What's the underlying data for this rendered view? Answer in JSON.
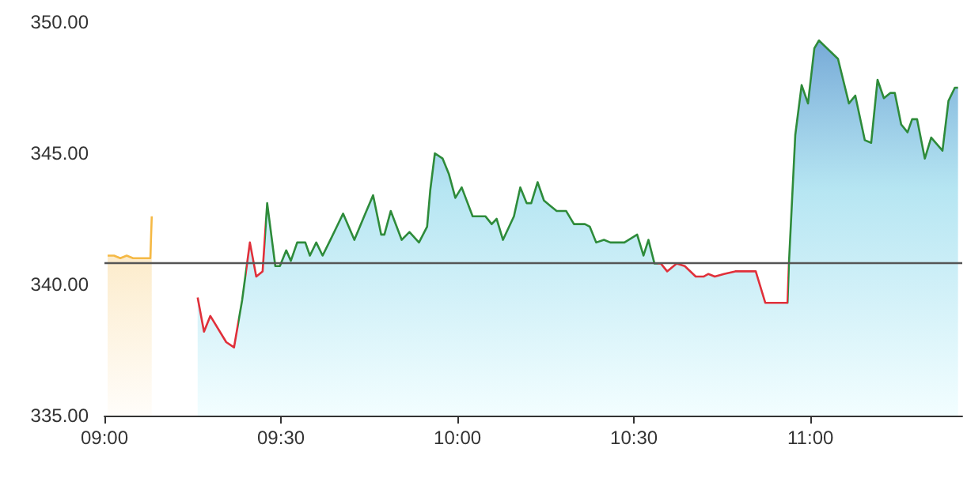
{
  "chart_data": {
    "type": "area",
    "xlim": [
      9,
      11.43
    ],
    "ylim": [
      335,
      350
    ],
    "xticks": [
      {
        "value": 9,
        "label": "09:00"
      },
      {
        "value": 9.5,
        "label": "09:30"
      },
      {
        "value": 10,
        "label": "10:00"
      },
      {
        "value": 10.5,
        "label": "10:30"
      },
      {
        "value": 11,
        "label": "11:00"
      }
    ],
    "yticks": [
      {
        "value": 335,
        "label": "335.00"
      },
      {
        "value": 340,
        "label": "340.00"
      },
      {
        "value": 345,
        "label": "345.00"
      },
      {
        "value": 350,
        "label": "350.00"
      }
    ],
    "grid": false,
    "marker": "none",
    "ref_lines": [
      {
        "axis": "y",
        "value": 340.8,
        "color": "#555555"
      }
    ],
    "series": [
      {
        "color": "#f5b945",
        "x": [
          9.009,
          9.027,
          9.045,
          9.063,
          9.081,
          9.099,
          9.116,
          9.13,
          9.134
        ],
        "values": [
          341.1,
          341.1,
          341.0,
          341.1,
          341.0,
          341.0,
          341.0,
          341.0,
          342.6
        ]
      },
      {
        "color": "#3d86c6",
        "x": [
          9.264,
          9.282,
          9.3,
          9.345,
          9.367,
          9.39,
          9.412,
          9.43,
          9.448,
          9.461,
          9.484,
          9.497,
          9.515,
          9.528,
          9.546,
          9.569,
          9.582,
          9.6,
          9.618,
          9.64,
          9.658,
          9.676,
          9.708,
          9.739,
          9.761,
          9.784,
          9.793,
          9.811,
          9.842,
          9.864,
          9.891,
          9.914,
          9.923,
          9.936,
          9.958,
          9.976,
          9.994,
          10.012,
          10.043,
          10.079,
          10.097,
          10.111,
          10.129,
          10.16,
          10.178,
          10.196,
          10.209,
          10.227,
          10.245,
          10.263,
          10.281,
          10.308,
          10.33,
          10.361,
          10.375,
          10.393,
          10.415,
          10.433,
          10.473,
          10.509,
          10.527,
          10.541,
          10.558,
          10.576,
          10.594,
          10.621,
          10.644,
          10.675,
          10.697,
          10.711,
          10.729,
          10.755,
          10.787,
          10.845,
          10.872,
          10.935,
          10.939,
          10.957,
          10.975,
          10.993,
          11.011,
          11.024,
          11.078,
          11.109,
          11.127,
          11.154,
          11.172,
          11.19,
          11.208,
          11.226,
          11.239,
          11.257,
          11.275,
          11.288,
          11.302,
          11.324,
          11.342,
          11.374,
          11.391,
          11.409,
          11.418
        ],
        "values": [
          339.5,
          338.2,
          338.8,
          337.8,
          337.6,
          339.4,
          341.6,
          340.3,
          340.5,
          343.1,
          340.7,
          340.7,
          341.3,
          340.9,
          341.6,
          341.6,
          341.1,
          341.6,
          341.1,
          341.7,
          342.2,
          342.7,
          341.7,
          342.7,
          343.4,
          341.9,
          341.9,
          342.8,
          341.7,
          342.0,
          341.6,
          342.2,
          343.6,
          345.0,
          344.8,
          344.2,
          343.3,
          343.7,
          342.6,
          342.6,
          342.3,
          342.5,
          341.7,
          342.6,
          343.7,
          343.1,
          343.1,
          343.9,
          343.2,
          343.0,
          342.8,
          342.8,
          342.3,
          342.3,
          342.2,
          341.6,
          341.7,
          341.6,
          341.6,
          341.9,
          341.1,
          341.7,
          340.8,
          340.8,
          340.5,
          340.8,
          340.7,
          340.3,
          340.3,
          340.4,
          340.3,
          340.4,
          340.5,
          340.5,
          339.3,
          339.3,
          340.8,
          345.7,
          347.6,
          346.9,
          349.0,
          349.3,
          348.6,
          346.9,
          347.2,
          345.5,
          345.4,
          347.8,
          347.1,
          347.3,
          347.3,
          346.1,
          345.8,
          346.3,
          346.3,
          344.8,
          345.6,
          345.1,
          347.0,
          347.5,
          347.5
        ],
        "colors": [
          "#e0303a",
          "#e0303a",
          "#e0303a",
          "#e0303a",
          "#e0303a",
          "#2e8b3a",
          "#e0303a",
          "#e0303a",
          "#e0303a",
          "#2e8b3a",
          "#2e8b3a",
          "#2e8b3a",
          "#2e8b3a",
          "#2e8b3a",
          "#2e8b3a",
          "#2e8b3a",
          "#2e8b3a",
          "#2e8b3a",
          "#2e8b3a",
          "#2e8b3a",
          "#2e8b3a",
          "#2e8b3a",
          "#2e8b3a",
          "#2e8b3a",
          "#2e8b3a",
          "#2e8b3a",
          "#2e8b3a",
          "#2e8b3a",
          "#2e8b3a",
          "#2e8b3a",
          "#2e8b3a",
          "#2e8b3a",
          "#2e8b3a",
          "#2e8b3a",
          "#2e8b3a",
          "#2e8b3a",
          "#2e8b3a",
          "#2e8b3a",
          "#2e8b3a",
          "#2e8b3a",
          "#2e8b3a",
          "#2e8b3a",
          "#2e8b3a",
          "#2e8b3a",
          "#2e8b3a",
          "#2e8b3a",
          "#2e8b3a",
          "#2e8b3a",
          "#2e8b3a",
          "#2e8b3a",
          "#2e8b3a",
          "#2e8b3a",
          "#2e8b3a",
          "#2e8b3a",
          "#2e8b3a",
          "#2e8b3a",
          "#2e8b3a",
          "#2e8b3a",
          "#2e8b3a",
          "#2e8b3a",
          "#2e8b3a",
          "#2e8b3a",
          "#2e8b3a",
          "#e0303a",
          "#e0303a",
          "#e0303a",
          "#e0303a",
          "#e0303a",
          "#e0303a",
          "#e0303a",
          "#e0303a",
          "#e0303a",
          "#e0303a",
          "#e0303a",
          "#e0303a",
          "#e0303a",
          "#2e8b3a",
          "#2e8b3a",
          "#2e8b3a",
          "#2e8b3a",
          "#2e8b3a",
          "#2e8b3a",
          "#2e8b3a",
          "#2e8b3a",
          "#2e8b3a",
          "#2e8b3a",
          "#2e8b3a",
          "#2e8b3a",
          "#2e8b3a",
          "#2e8b3a",
          "#2e8b3a",
          "#2e8b3a",
          "#2e8b3a",
          "#2e8b3a",
          "#2e8b3a",
          "#2e8b3a",
          "#2e8b3a",
          "#2e8b3a",
          "#2e8b3a",
          "#2e8b3a",
          "#2e8b3a"
        ]
      }
    ]
  }
}
